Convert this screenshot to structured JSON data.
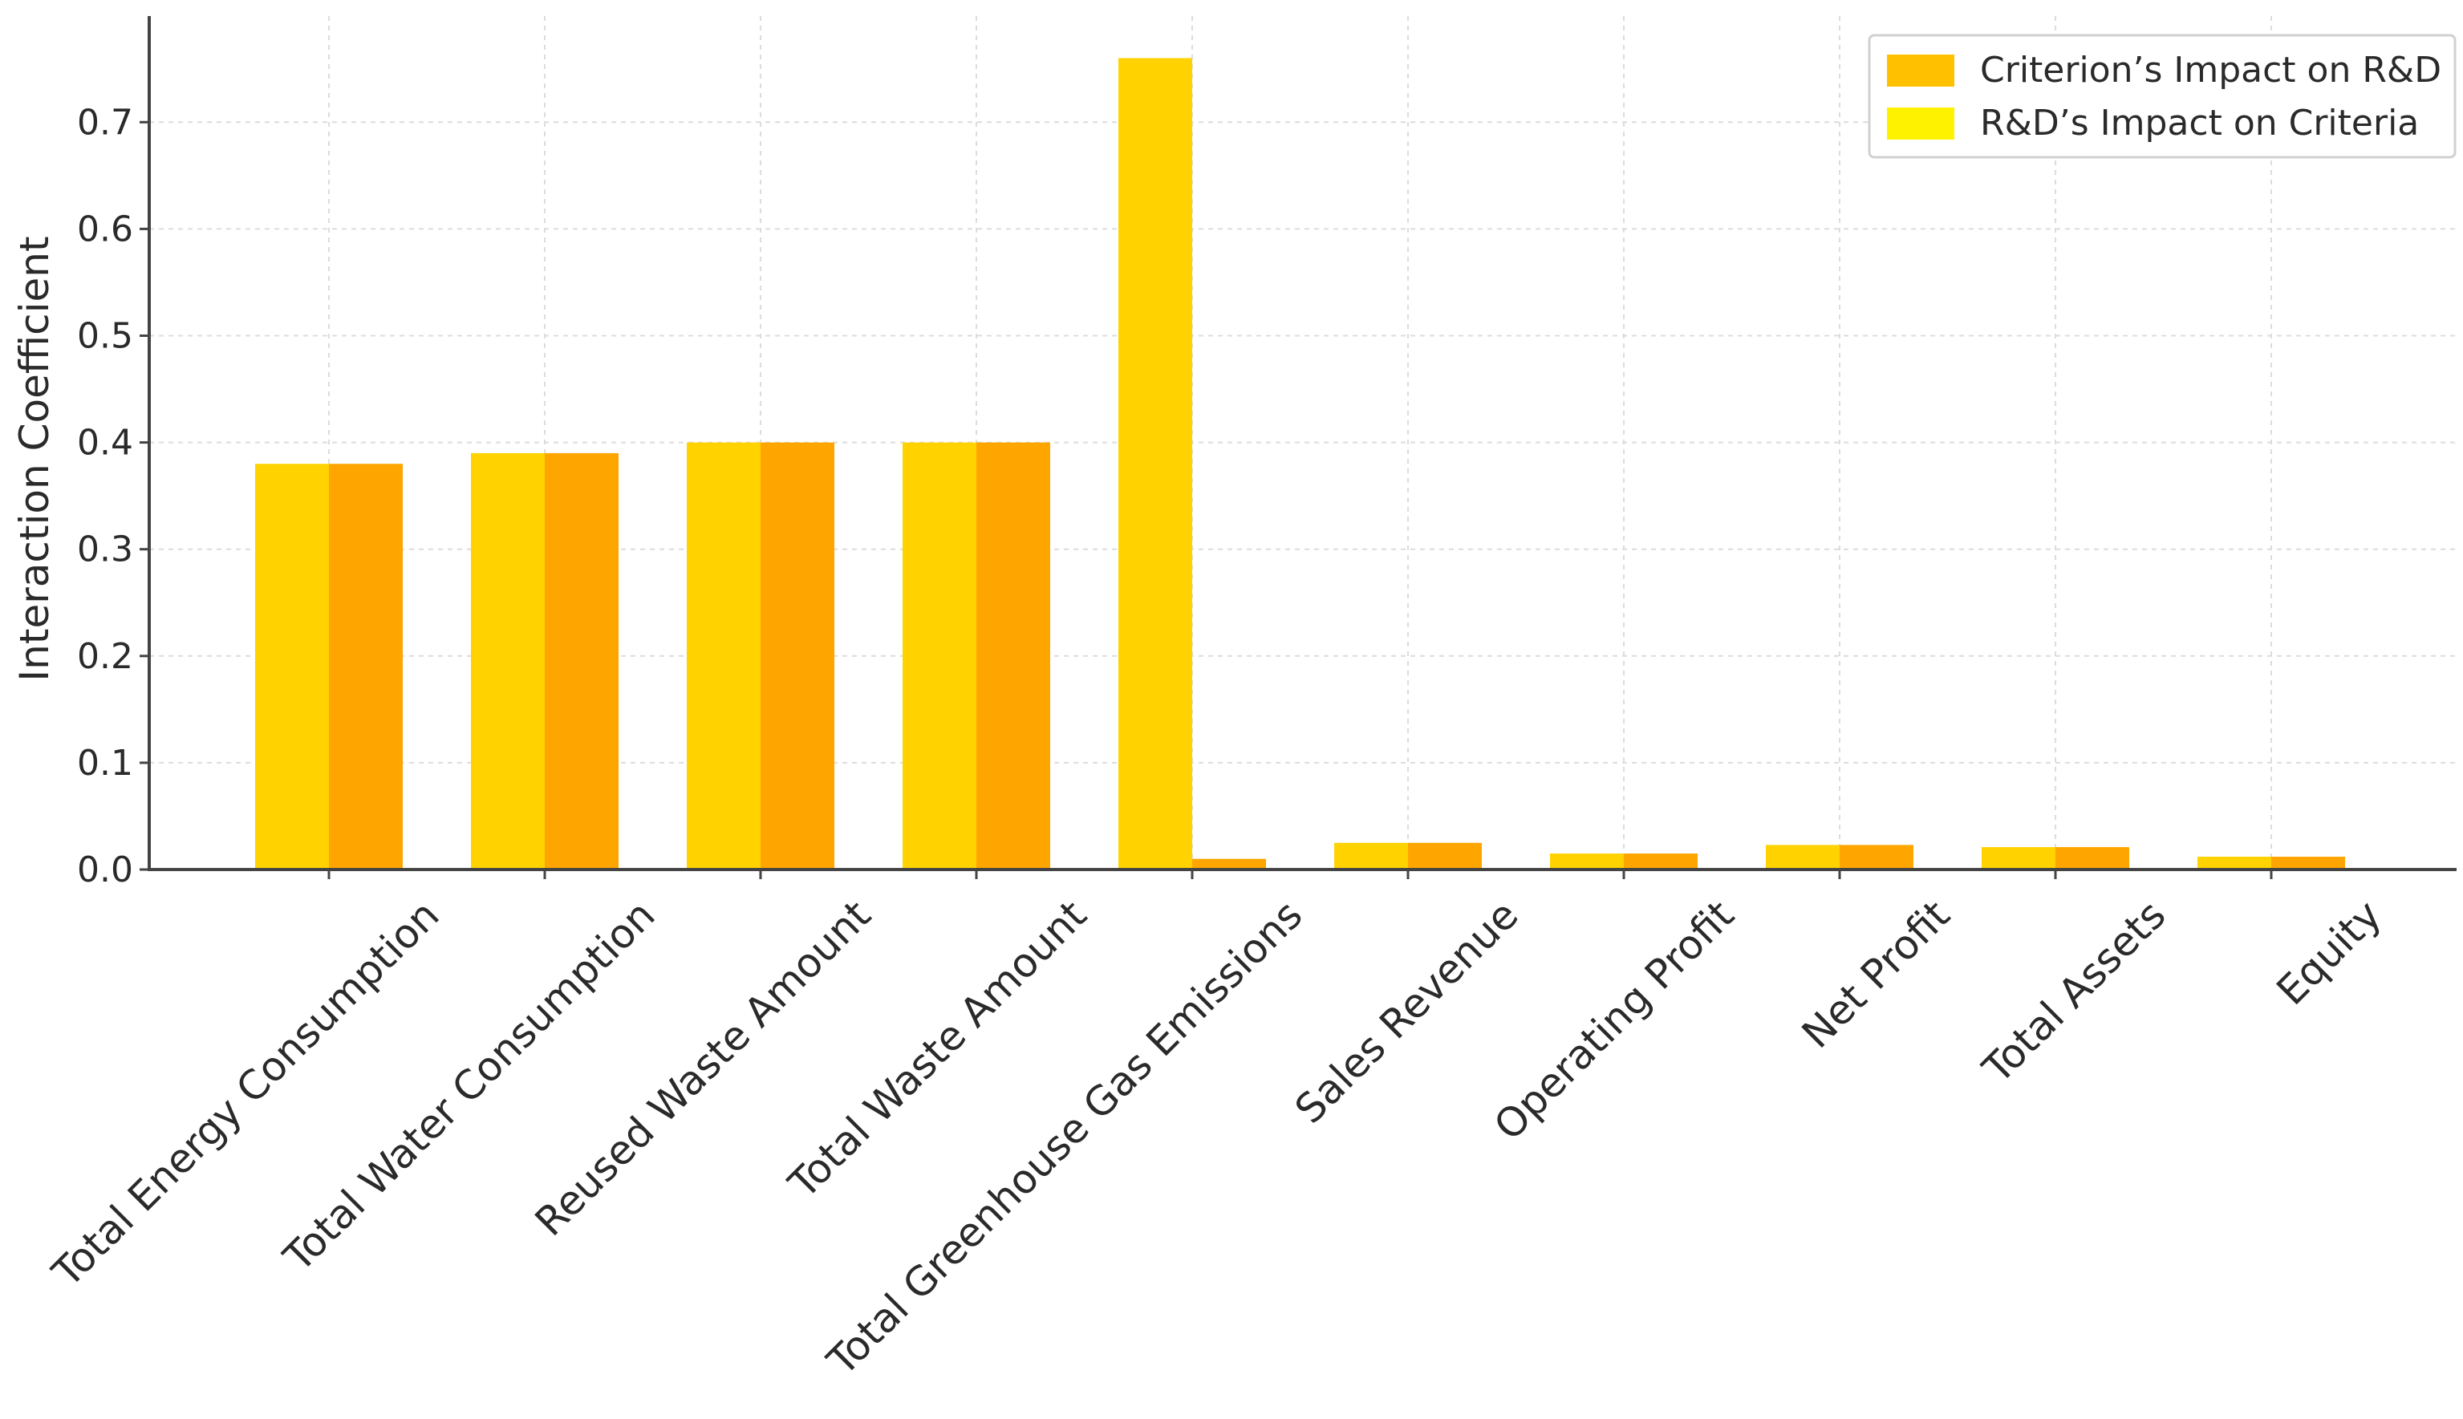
{
  "chart_data": {
    "type": "bar",
    "title": "",
    "xlabel": "",
    "ylabel": "Interaction Coefficient",
    "ylim": [
      0,
      0.8
    ],
    "yticks": [
      "0.0",
      "0.1",
      "0.2",
      "0.3",
      "0.4",
      "0.5",
      "0.6",
      "0.7"
    ],
    "grid": true,
    "legend_position": "top-right",
    "categories": [
      "Total Energy Consumption",
      "Total Water Consumption",
      "Reused Waste Amount",
      "Total Waste Amount",
      "Total Greenhouse Gas Emissions",
      "Sales Revenue",
      "Operating Profit",
      "Net Profit",
      "Total Assets",
      "Equity"
    ],
    "series": [
      {
        "name": "Criterion's Impact on R&D",
        "color": "#FFD200",
        "values": [
          0.38,
          0.39,
          0.4,
          0.4,
          0.76,
          0.025,
          0.015,
          0.023,
          0.021,
          0.012
        ]
      },
      {
        "name": "R&D's Impact on Criteria",
        "color": "#FFA500",
        "values": [
          0.38,
          0.39,
          0.4,
          0.4,
          0.01,
          0.025,
          0.015,
          0.023,
          0.021,
          0.012
        ]
      }
    ],
    "legend_entries": [
      {
        "label": "Criterion’s Impact on R&D",
        "color": "#FFC000"
      },
      {
        "label": "R&D’s Impact on Criteria",
        "color": "#FFF200"
      }
    ]
  }
}
